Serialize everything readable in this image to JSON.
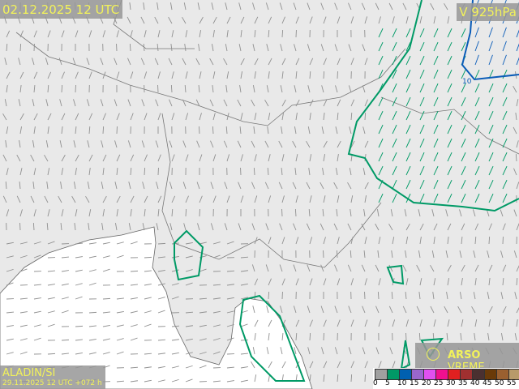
{
  "header": {
    "valid_time": "02.12.2025 12 UTC",
    "level": "V 925hPa"
  },
  "model": {
    "name": "ALADIN/SI",
    "run": "29.11.2025 12 UTC +072 h"
  },
  "brand": {
    "strong": "ARSO",
    "rest": " VREME",
    "icon": "sun-icon"
  },
  "contour_labels": [
    "10"
  ],
  "colors": {
    "land": "#e9e9e9",
    "sea": "#ffffff",
    "label_bg": "#969696",
    "label_text": "#f2f25a",
    "contour_5": "#009a66",
    "contour_10": "#0a5cb8",
    "barb_calm": "#909090"
  },
  "legend": {
    "ticks": [
      "0",
      "5",
      "10",
      "15",
      "20",
      "25",
      "30",
      "35",
      "40",
      "45",
      "50",
      "55"
    ],
    "colors": [
      "#a0a0a0",
      "#009966",
      "#0060b0",
      "#9966cc",
      "#e050f0",
      "#f0108f",
      "#e02020",
      "#a03030",
      "#4a3030",
      "#6a3a08",
      "#9a6030",
      "#b89a6a"
    ]
  }
}
